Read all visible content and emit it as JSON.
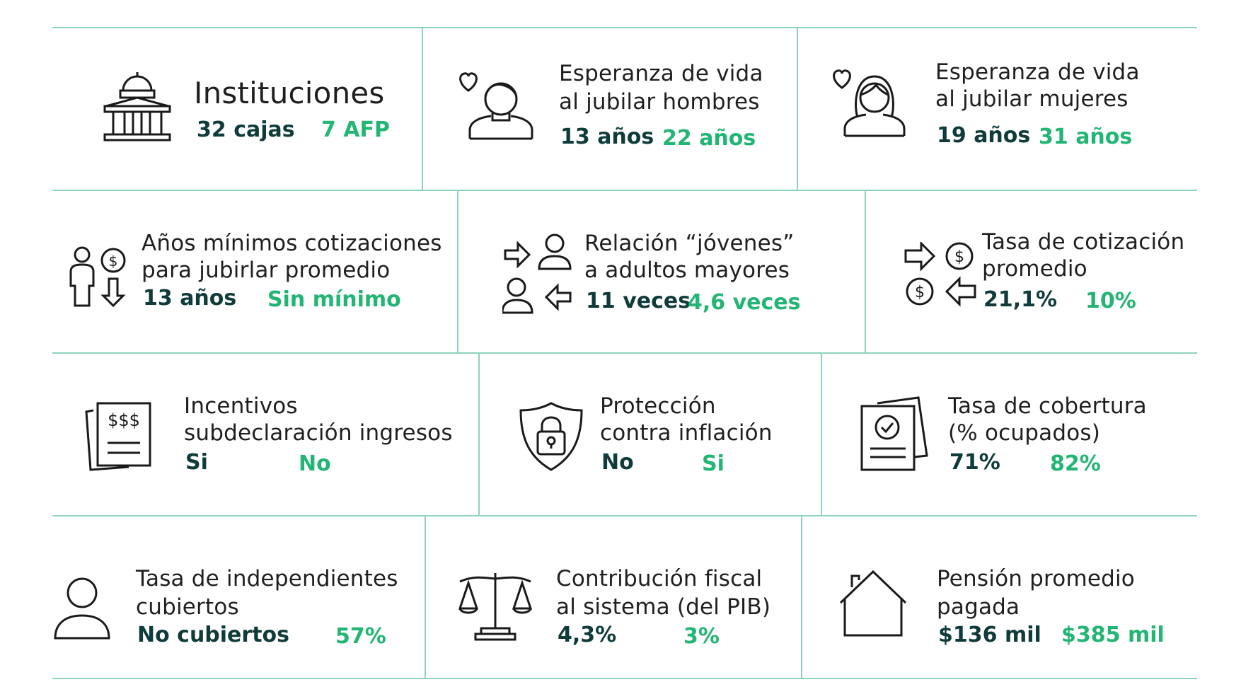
{
  "accent_colors": {
    "dark": "#0f3b3a",
    "green": "#22b573",
    "divider": "#8fd3bc"
  },
  "rows": [
    {
      "cells": [
        {
          "icon": "institution-building-icon",
          "title": [
            "Instituciones"
          ],
          "dark": "32 cajas",
          "green": "7 AFP"
        },
        {
          "icon": "man-heart-icon",
          "title": [
            "Esperanza de vida",
            "al jubilar hombres"
          ],
          "dark": "13 años",
          "green": "22 años"
        },
        {
          "icon": "woman-heart-icon",
          "title": [
            "Esperanza de vida",
            "al jubilar mujeres"
          ],
          "dark": "19 años",
          "green": "31 años"
        }
      ]
    },
    {
      "cells": [
        {
          "icon": "person-money-down-icon",
          "title": [
            "Años mínimos cotizaciones",
            "para jubirlar promedio"
          ],
          "dark": "13 años",
          "green": "Sin mínimo"
        },
        {
          "icon": "people-exchange-icon",
          "title": [
            "Relación “jóvenes”",
            "a adultos mayores"
          ],
          "dark": "11 veces",
          "green": "4,6 veces"
        },
        {
          "icon": "money-exchange-icon",
          "title": [
            "Tasa de cotización",
            "promedio"
          ],
          "dark": "21,1%",
          "green": "10%"
        }
      ]
    },
    {
      "cells": [
        {
          "icon": "income-documents-icon",
          "title": [
            "Incentivos",
            "subdeclaración ingresos"
          ],
          "dark": "Si",
          "green": "No"
        },
        {
          "icon": "shield-lock-icon",
          "title": [
            "Protección",
            "contra inflación"
          ],
          "dark": "No",
          "green": "Si"
        },
        {
          "icon": "approved-document-icon",
          "title": [
            "Tasa de cobertura",
            "(% ocupados)"
          ],
          "dark": "71%",
          "green": "82%"
        }
      ]
    },
    {
      "cells": [
        {
          "icon": "person-icon",
          "title": [
            "Tasa de independientes",
            "cubiertos"
          ],
          "dark": "No cubiertos",
          "green": "57%"
        },
        {
          "icon": "scales-icon",
          "title": [
            "Contribución fiscal",
            "al sistema (del PIB)"
          ],
          "dark": "4,3%",
          "green": "3%"
        },
        {
          "icon": "house-icon",
          "title": [
            "Pensión promedio",
            "pagada"
          ],
          "dark": "$136 mil",
          "green": "$385 mil"
        }
      ]
    }
  ]
}
